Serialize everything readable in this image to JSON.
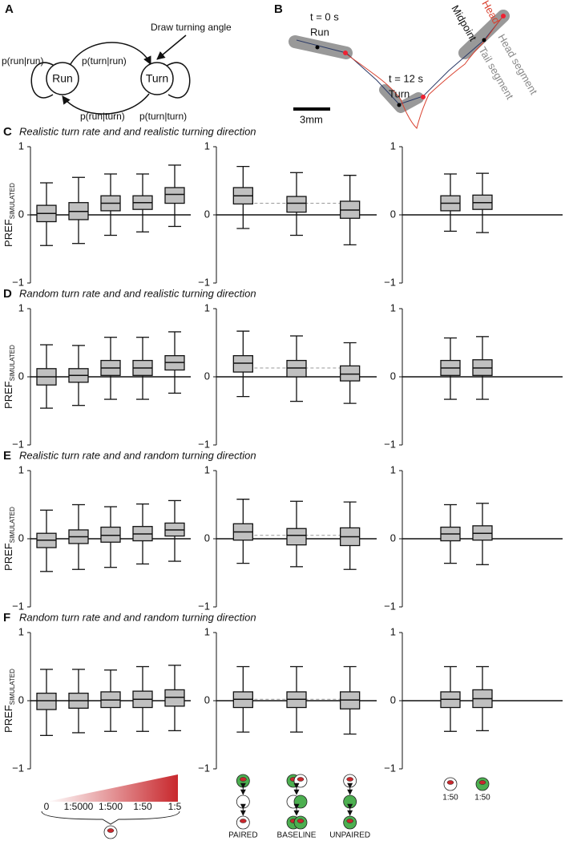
{
  "panel_a": {
    "label": "A",
    "run_run": "p(run|run)",
    "turn_run": "p(turn|run)",
    "note": "Draw turning angle",
    "run": "Run",
    "turn": "Turn",
    "run_turn": "p(run|turn)",
    "turn_turn": "p(turn|turn)"
  },
  "panel_b": {
    "label": "B",
    "t0": "t = 0 s",
    "run": "Run",
    "t12": "t = 12 s",
    "turn": "Turn",
    "midpoint": "Midpoint",
    "head": "Head",
    "head_segment": "Head segment",
    "tail_segment": "Tail segment",
    "scale": "3mm"
  },
  "chart_data": [
    {
      "type": "box",
      "panel": "C",
      "title": "Realistic turn rate and and realistic turning direction",
      "ylabel": "PREF",
      "ylabel_sub": "SIMULATED",
      "ylim": [
        -1,
        1
      ],
      "yticks": [
        {
          "value": -1,
          "label": "−1"
        },
        0,
        1
      ],
      "color": "#c0c0c0",
      "boxes": [
        [
          -0.45,
          -0.1,
          0.02,
          0.14,
          0.47
        ],
        [
          -0.42,
          -0.07,
          0.05,
          0.18,
          0.55
        ],
        [
          -0.3,
          0.06,
          0.17,
          0.28,
          0.6
        ],
        [
          -0.25,
          0.08,
          0.18,
          0.28,
          0.6
        ],
        [
          -0.17,
          0.17,
          0.3,
          0.4,
          0.73
        ]
      ]
    },
    {
      "type": "box",
      "ylim": [
        -1,
        1
      ],
      "yticks": [
        {
          "value": -1,
          "label": "−1"
        },
        0,
        1
      ],
      "color": "#c0c0c0",
      "dashed_baseline": true,
      "boxes": [
        [
          -0.2,
          0.16,
          0.28,
          0.4,
          0.71
        ],
        [
          -0.3,
          0.04,
          0.17,
          0.27,
          0.62
        ],
        [
          -0.44,
          -0.05,
          0.07,
          0.2,
          0.58
        ]
      ]
    },
    {
      "type": "box",
      "ylim": [
        -1,
        1
      ],
      "yticks": [
        {
          "value": -1,
          "label": "−1"
        },
        0,
        1
      ],
      "color": "#c0c0c0",
      "boxes": [
        null,
        [
          -0.24,
          0.06,
          0.17,
          0.28,
          0.6
        ],
        [
          -0.26,
          0.08,
          0.18,
          0.29,
          0.61
        ],
        null,
        null
      ]
    },
    {
      "type": "box",
      "panel": "D",
      "title": "Random turn rate and and realistic turning direction",
      "ylabel": "PREF",
      "ylabel_sub": "SIMULATED",
      "ylim": [
        -1,
        1
      ],
      "yticks": [
        {
          "value": -1,
          "label": "−1"
        },
        0,
        1
      ],
      "color": "#c0c0c0",
      "boxes": [
        [
          -0.46,
          -0.12,
          0.0,
          0.12,
          0.47
        ],
        [
          -0.42,
          -0.08,
          0.02,
          0.12,
          0.46
        ],
        [
          -0.33,
          0.02,
          0.13,
          0.24,
          0.58
        ],
        [
          -0.33,
          0.02,
          0.13,
          0.24,
          0.58
        ],
        [
          -0.24,
          0.1,
          0.21,
          0.31,
          0.66
        ]
      ]
    },
    {
      "type": "box",
      "ylim": [
        -1,
        1
      ],
      "yticks": [
        {
          "value": -1,
          "label": "−1"
        },
        0,
        1
      ],
      "color": "#c0c0c0",
      "dashed_baseline": true,
      "boxes": [
        [
          -0.29,
          0.07,
          0.2,
          0.31,
          0.67
        ],
        [
          -0.36,
          0.0,
          0.13,
          0.24,
          0.6
        ],
        [
          -0.39,
          -0.06,
          0.04,
          0.16,
          0.5
        ]
      ]
    },
    {
      "type": "box",
      "ylim": [
        -1,
        1
      ],
      "yticks": [
        {
          "value": -1,
          "label": "−1"
        },
        0,
        1
      ],
      "color": "#c0c0c0",
      "boxes": [
        null,
        [
          -0.33,
          0.02,
          0.13,
          0.24,
          0.57
        ],
        [
          -0.33,
          0.02,
          0.13,
          0.25,
          0.59
        ],
        null,
        null
      ]
    },
    {
      "type": "box",
      "panel": "E",
      "title": "Realistic turn rate and and random turning direction",
      "ylabel": "PREF",
      "ylabel_sub": "SIMULATED",
      "ylim": [
        -1,
        1
      ],
      "yticks": [
        {
          "value": -1,
          "label": "−1"
        },
        0,
        1
      ],
      "color": "#c0c0c0",
      "boxes": [
        [
          -0.48,
          -0.13,
          -0.02,
          0.08,
          0.42
        ],
        [
          -0.45,
          -0.07,
          0.03,
          0.13,
          0.5
        ],
        [
          -0.42,
          -0.05,
          0.05,
          0.17,
          0.47
        ],
        [
          -0.37,
          -0.03,
          0.07,
          0.18,
          0.51
        ],
        [
          -0.33,
          0.04,
          0.13,
          0.23,
          0.56
        ]
      ]
    },
    {
      "type": "box",
      "ylim": [
        -1,
        1
      ],
      "yticks": [
        {
          "value": -1,
          "label": "−1"
        },
        0,
        1
      ],
      "color": "#c0c0c0",
      "dashed_baseline": true,
      "boxes": [
        [
          -0.36,
          -0.02,
          0.1,
          0.22,
          0.58
        ],
        [
          -0.41,
          -0.09,
          0.05,
          0.15,
          0.55
        ],
        [
          -0.45,
          -0.1,
          0.03,
          0.16,
          0.54
        ]
      ]
    },
    {
      "type": "box",
      "ylim": [
        -1,
        1
      ],
      "yticks": [
        {
          "value": -1,
          "label": "−1"
        },
        0,
        1
      ],
      "color": "#c0c0c0",
      "boxes": [
        null,
        [
          -0.36,
          -0.03,
          0.07,
          0.17,
          0.5
        ],
        [
          -0.38,
          -0.02,
          0.08,
          0.19,
          0.52
        ],
        null,
        null
      ]
    },
    {
      "type": "box",
      "panel": "F",
      "title": "Random turn rate and and random turning direction",
      "ylabel": "PREF",
      "ylabel_sub": "SIMULATED",
      "ylim": [
        -1,
        1
      ],
      "yticks": [
        {
          "value": -1,
          "label": "−1"
        },
        0,
        1
      ],
      "color": "#c0c0c0",
      "categories": [
        "0",
        "1:5000",
        "1:500",
        "1:50",
        "1:5"
      ],
      "boxes": [
        [
          -0.51,
          -0.13,
          0.0,
          0.11,
          0.46
        ],
        [
          -0.47,
          -0.11,
          0.0,
          0.11,
          0.46
        ],
        [
          -0.45,
          -0.1,
          0.01,
          0.13,
          0.45
        ],
        [
          -0.45,
          -0.1,
          0.02,
          0.14,
          0.5
        ],
        [
          -0.44,
          -0.08,
          0.05,
          0.16,
          0.52
        ]
      ]
    },
    {
      "type": "box",
      "ylim": [
        -1,
        1
      ],
      "yticks": [
        {
          "value": -1,
          "label": "−1"
        },
        0,
        1
      ],
      "color": "#c0c0c0",
      "dashed_baseline": true,
      "categories": [
        "PAIRED",
        "BASELINE",
        "UNPAIRED"
      ],
      "boxes": [
        [
          -0.46,
          -0.1,
          0.02,
          0.13,
          0.5
        ],
        [
          -0.46,
          -0.1,
          0.02,
          0.13,
          0.5
        ],
        [
          -0.49,
          -0.12,
          0.01,
          0.13,
          0.5
        ]
      ]
    },
    {
      "type": "box",
      "ylim": [
        -1,
        1
      ],
      "yticks": [
        {
          "value": -1,
          "label": "−1"
        },
        0,
        1
      ],
      "color": "#c0c0c0",
      "categories": [
        null,
        "1:50",
        "1:50",
        null,
        null
      ],
      "boxes": [
        null,
        [
          -0.45,
          -0.1,
          0.02,
          0.13,
          0.5
        ],
        [
          -0.44,
          -0.1,
          0.03,
          0.16,
          0.5
        ],
        null,
        null
      ]
    }
  ]
}
